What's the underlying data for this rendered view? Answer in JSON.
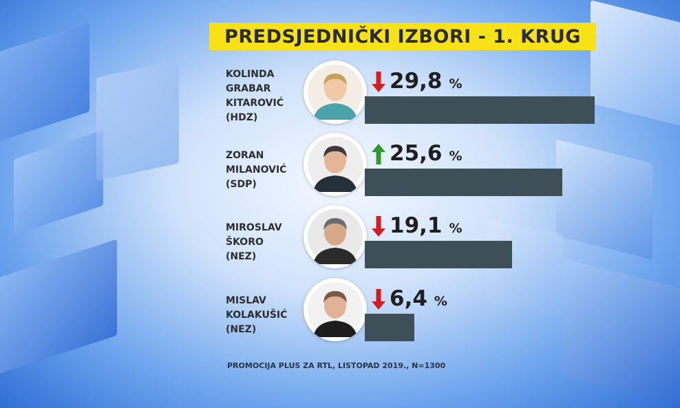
{
  "title": "PREDSJEDNIČKI IZBORI - 1. KRUG",
  "footer": "PROMOCIJA PLUS ZA RTL, LISTOPAD 2019., N=1300",
  "colors": {
    "title_bg": "#f7e21a",
    "bar": "#3e4f57",
    "down": "#d21d23",
    "up": "#2f9a2f"
  },
  "chart_data": {
    "type": "bar",
    "unit": "%",
    "categories": [
      [
        "KOLINDA",
        "GRABAR",
        "KITAROVIĆ",
        "(HDZ)"
      ],
      [
        "ZORAN",
        "MILANOVIĆ",
        "(SDP)"
      ],
      [
        "MIROSLAV",
        "ŠKORO",
        "(NEZ)"
      ],
      [
        "MISLAV",
        "KOLAKUŠIĆ",
        "(NEZ)"
      ]
    ],
    "values": [
      29.8,
      25.6,
      19.1,
      6.4
    ],
    "value_labels": [
      "29,8",
      "25,6",
      "19,1",
      "6,4"
    ],
    "trend": [
      "down",
      "up",
      "down",
      "down"
    ],
    "trend_icons": [
      "arrow-down-icon",
      "arrow-up-icon",
      "arrow-down-icon",
      "arrow-down-icon"
    ]
  }
}
